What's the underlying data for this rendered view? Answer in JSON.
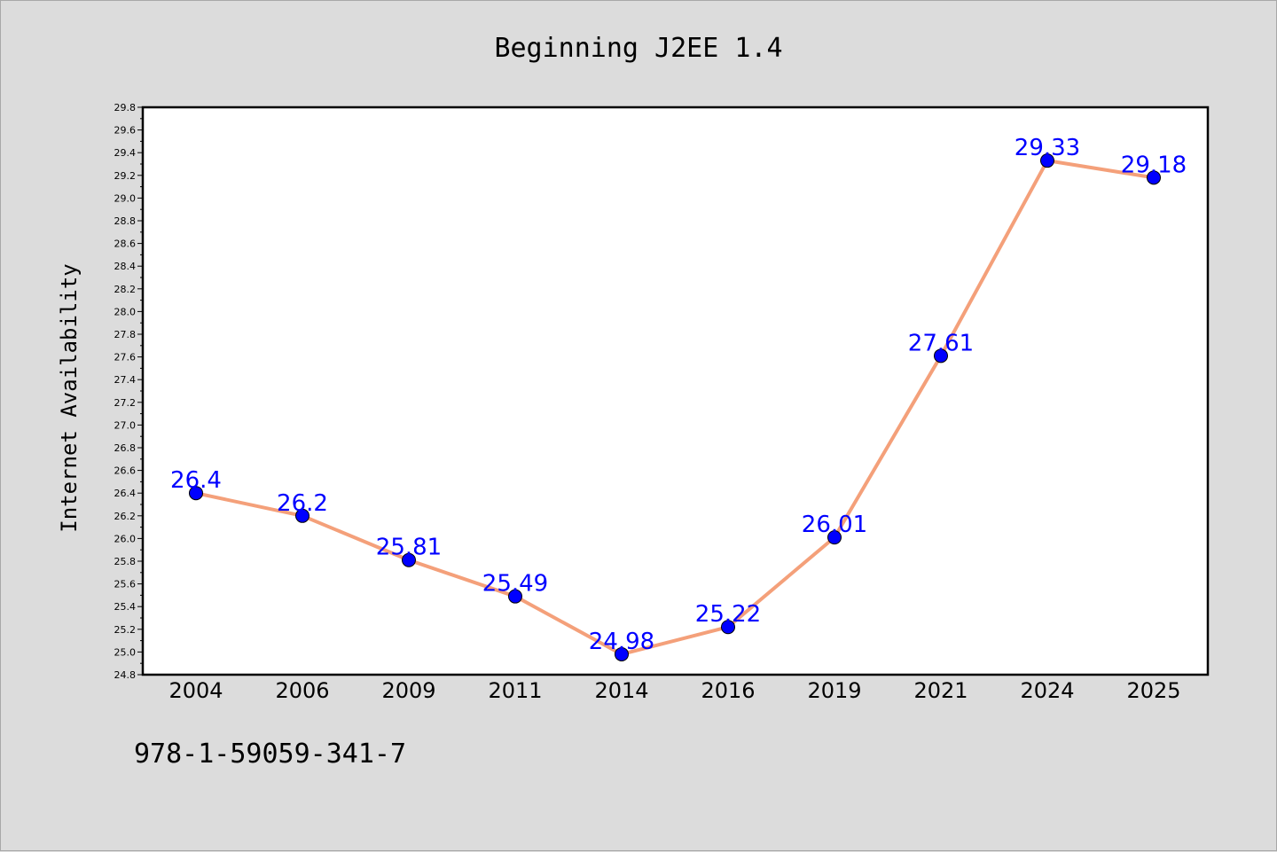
{
  "chart_data": {
    "type": "line",
    "title": "Beginning J2EE 1.4",
    "xlabel": "",
    "ylabel": "Internet Availability",
    "categories": [
      "2004",
      "2006",
      "2009",
      "2011",
      "2014",
      "2016",
      "2019",
      "2021",
      "2024",
      "2025"
    ],
    "series": [
      {
        "values": [
          26.4,
          26.2,
          25.81,
          25.49,
          24.98,
          25.22,
          26.01,
          27.61,
          29.33,
          29.18
        ],
        "data_labels": [
          "26.4",
          "26.2",
          "25.81",
          "25.49",
          "24.98",
          "25.22",
          "26.01",
          "27.61",
          "29.33",
          "29.18"
        ],
        "line_color": "#f4a07a",
        "marker_color": "#0000ff"
      }
    ],
    "ylim": [
      24.8,
      29.8
    ],
    "yticks": [
      "24.8",
      "25.0",
      "25.2",
      "25.4",
      "25.6",
      "25.8",
      "26.0",
      "26.2",
      "26.4",
      "26.6",
      "26.8",
      "27.0",
      "27.2",
      "27.4",
      "27.6",
      "27.8",
      "28.0",
      "28.2",
      "28.4",
      "28.6",
      "28.8",
      "29.0",
      "29.2",
      "29.4",
      "29.6",
      "29.8"
    ],
    "grid": false,
    "legend": "none",
    "background_color": "#dcdcdc",
    "plot_background_color": "#ffffff"
  },
  "footer": {
    "isbn": "978-1-59059-341-7"
  }
}
